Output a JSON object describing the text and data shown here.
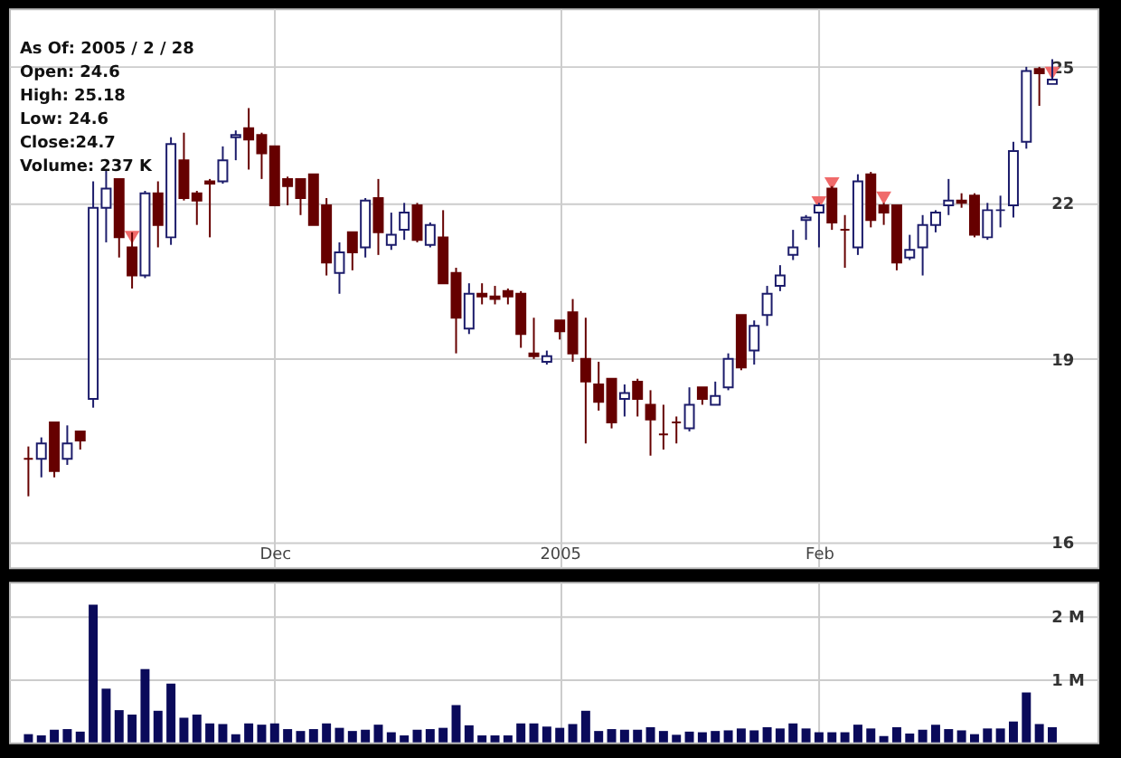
{
  "chart_data": [
    {
      "type": "candlestick",
      "categories": [
        null,
        null,
        null,
        null,
        null,
        null,
        null,
        null,
        null,
        null,
        null,
        null,
        null,
        null,
        null,
        null,
        null,
        null,
        null,
        "Dec",
        null,
        null,
        null,
        null,
        null,
        null,
        null,
        null,
        null,
        null,
        null,
        null,
        null,
        null,
        null,
        null,
        null,
        null,
        null,
        null,
        null,
        "2005",
        null,
        null,
        null,
        null,
        null,
        null,
        null,
        null,
        null,
        null,
        null,
        null,
        null,
        null,
        null,
        null,
        null,
        null,
        null,
        "Feb",
        null,
        null,
        null,
        null,
        null,
        null,
        null,
        null,
        null,
        null,
        null,
        null,
        null,
        null,
        null,
        null,
        null,
        null
      ],
      "ohlc": [
        [
          17.3,
          17.5,
          16.7,
          17.3
        ],
        [
          17.3,
          17.65,
          17.0,
          17.55
        ],
        [
          17.9,
          17.9,
          17.0,
          17.1
        ],
        [
          17.3,
          17.85,
          17.2,
          17.55
        ],
        [
          17.75,
          17.75,
          17.45,
          17.6
        ],
        [
          18.3,
          22.45,
          18.15,
          21.9
        ],
        [
          21.9,
          22.7,
          21.2,
          22.3
        ],
        [
          22.5,
          22.5,
          20.9,
          21.3
        ],
        [
          21.1,
          21.4,
          20.3,
          20.55
        ],
        [
          20.55,
          22.25,
          20.5,
          22.2
        ],
        [
          22.2,
          22.45,
          21.1,
          21.55
        ],
        [
          21.3,
          23.4,
          21.15,
          23.25
        ],
        [
          22.9,
          23.5,
          22.05,
          22.1
        ],
        [
          22.2,
          22.25,
          21.55,
          22.05
        ],
        [
          22.45,
          22.5,
          21.3,
          22.4
        ],
        [
          22.45,
          23.2,
          22.4,
          22.9
        ],
        [
          23.4,
          23.55,
          22.9,
          23.45
        ],
        [
          23.6,
          24.05,
          22.7,
          23.35
        ],
        [
          23.45,
          23.5,
          22.5,
          23.05
        ],
        [
          23.2,
          23.2,
          21.95,
          21.95
        ],
        [
          22.5,
          22.55,
          21.95,
          22.35
        ],
        [
          22.5,
          22.5,
          21.75,
          22.1
        ],
        [
          22.6,
          22.6,
          21.55,
          21.55
        ],
        [
          21.95,
          22.1,
          20.55,
          20.8
        ],
        [
          20.6,
          21.2,
          20.2,
          21.0
        ],
        [
          21.4,
          21.4,
          20.65,
          21.0
        ],
        [
          21.1,
          22.1,
          20.9,
          22.05
        ],
        [
          22.1,
          22.5,
          20.95,
          21.4
        ],
        [
          21.15,
          21.8,
          21.05,
          21.35
        ],
        [
          21.45,
          22.0,
          21.25,
          21.8
        ],
        [
          21.95,
          22.0,
          21.2,
          21.25
        ],
        [
          21.15,
          21.6,
          21.1,
          21.55
        ],
        [
          21.3,
          21.85,
          20.4,
          20.4
        ],
        [
          20.6,
          20.7,
          19.1,
          19.75
        ],
        [
          19.55,
          20.4,
          19.45,
          20.2
        ],
        [
          20.2,
          20.4,
          20.0,
          20.15
        ],
        [
          20.15,
          20.35,
          20.0,
          20.1
        ],
        [
          20.25,
          20.3,
          20.0,
          20.15
        ],
        [
          20.2,
          20.25,
          19.2,
          19.45
        ],
        [
          19.1,
          19.75,
          19.0,
          19.05
        ],
        [
          18.95,
          19.15,
          18.9,
          19.05
        ],
        [
          19.7,
          19.7,
          19.35,
          19.5
        ],
        [
          19.85,
          20.1,
          18.95,
          19.1
        ],
        [
          19.0,
          19.75,
          17.55,
          18.6
        ],
        [
          18.55,
          18.95,
          18.1,
          18.25
        ],
        [
          18.65,
          18.65,
          17.8,
          17.9
        ],
        [
          18.3,
          18.55,
          18.0,
          18.4
        ],
        [
          18.6,
          18.65,
          18.0,
          18.3
        ],
        [
          18.2,
          18.45,
          17.35,
          17.95
        ],
        [
          17.7,
          18.2,
          17.45,
          17.7
        ],
        [
          17.9,
          18.0,
          17.55,
          17.9
        ],
        [
          17.8,
          18.5,
          17.75,
          18.2
        ],
        [
          18.5,
          18.5,
          18.2,
          18.3
        ],
        [
          18.2,
          18.6,
          18.2,
          18.35
        ],
        [
          18.5,
          19.1,
          18.45,
          19.0
        ],
        [
          19.8,
          19.8,
          18.8,
          18.85
        ],
        [
          19.15,
          19.7,
          18.9,
          19.6
        ],
        [
          19.8,
          20.35,
          19.6,
          20.2
        ],
        [
          20.35,
          20.75,
          20.25,
          20.55
        ],
        [
          20.95,
          21.45,
          20.85,
          21.1
        ],
        [
          21.65,
          21.75,
          21.25,
          21.7
        ],
        [
          21.8,
          22.0,
          21.1,
          21.95
        ],
        [
          22.3,
          22.35,
          21.45,
          21.6
        ],
        [
          21.45,
          21.75,
          20.7,
          21.45
        ],
        [
          21.1,
          22.6,
          20.95,
          22.45
        ],
        [
          22.6,
          22.65,
          21.5,
          21.65
        ],
        [
          21.95,
          22.0,
          21.55,
          21.8
        ],
        [
          21.95,
          21.95,
          20.65,
          20.8
        ],
        [
          20.9,
          21.35,
          20.85,
          21.05
        ],
        [
          21.1,
          21.75,
          20.55,
          21.55
        ],
        [
          21.55,
          21.85,
          21.4,
          21.8
        ],
        [
          21.95,
          22.5,
          21.75,
          22.05
        ],
        [
          22.05,
          22.2,
          21.9,
          22.0
        ],
        [
          22.15,
          22.2,
          21.3,
          21.35
        ],
        [
          21.3,
          22.0,
          21.25,
          21.85
        ],
        [
          21.85,
          22.15,
          21.5,
          21.85
        ],
        [
          21.95,
          23.3,
          21.7,
          23.1
        ],
        [
          23.3,
          25.0,
          23.15,
          24.9
        ],
        [
          24.95,
          25.0,
          24.1,
          24.85
        ],
        [
          24.6,
          25.18,
          24.6,
          24.7
        ]
      ],
      "colors": [
        "#660000",
        "#1c1c6b",
        "#660000",
        "#1c1c6b",
        "#660000",
        "#1c1c6b",
        "#1c1c6b",
        "#660000",
        "#660000",
        "#1c1c6b",
        "#660000",
        "#1c1c6b",
        "#660000",
        "#660000",
        "#660000",
        "#1c1c6b",
        "#1c1c6b",
        "#660000",
        "#660000",
        "#660000",
        "#660000",
        "#660000",
        "#660000",
        "#660000",
        "#1c1c6b",
        "#660000",
        "#1c1c6b",
        "#660000",
        "#1c1c6b",
        "#1c1c6b",
        "#660000",
        "#1c1c6b",
        "#660000",
        "#660000",
        "#1c1c6b",
        "#660000",
        "#660000",
        "#660000",
        "#660000",
        "#660000",
        "#1c1c6b",
        "#660000",
        "#660000",
        "#660000",
        "#660000",
        "#660000",
        "#1c1c6b",
        "#660000",
        "#660000",
        "#660000",
        "#660000",
        "#1c1c6b",
        "#660000",
        "#1c1c6b",
        "#1c1c6b",
        "#660000",
        "#1c1c6b",
        "#1c1c6b",
        "#1c1c6b",
        "#1c1c6b",
        "#1c1c6b",
        "#1c1c6b",
        "#660000",
        "#660000",
        "#1c1c6b",
        "#660000",
        "#660000",
        "#660000",
        "#1c1c6b",
        "#1c1c6b",
        "#1c1c6b",
        "#1c1c6b",
        "#660000",
        "#660000",
        "#1c1c6b",
        "#1c1c6b",
        "#1c1c6b",
        "#1c1c6b",
        "#660000",
        "#1c1c6b"
      ],
      "series": [
        {
          "type": "scatter",
          "color": "#f06a6a",
          "marker": "triangle",
          "values": [
            null,
            null,
            null,
            null,
            null,
            null,
            null,
            null,
            21.3,
            null,
            null,
            null,
            null,
            null,
            null,
            null,
            null,
            null,
            null,
            null,
            null,
            null,
            null,
            null,
            null,
            null,
            null,
            null,
            null,
            null,
            null,
            null,
            null,
            null,
            null,
            null,
            null,
            null,
            null,
            null,
            null,
            null,
            null,
            null,
            null,
            null,
            null,
            null,
            null,
            null,
            null,
            null,
            null,
            null,
            null,
            null,
            null,
            null,
            null,
            null,
            null,
            22.0,
            22.4,
            null,
            null,
            null,
            22.1,
            null,
            null,
            null,
            null,
            null,
            null,
            null,
            null,
            null,
            null,
            null,
            null,
            24.85
          ]
        }
      ],
      "ylim": [
        15.62,
        26.41
      ],
      "yticks": [
        16,
        19,
        22,
        25
      ],
      "log": true,
      "grid": true,
      "annotations": [
        "As Of: 2005 / 2 / 28",
        "Open: 24.6",
        "High: 25.18",
        "Low: 24.6",
        "Close:24.7",
        "Volume: 237 K"
      ]
    },
    {
      "type": "bar",
      "categories": [
        null,
        null,
        null,
        null,
        null,
        null,
        null,
        null,
        null,
        null,
        null,
        null,
        null,
        null,
        null,
        null,
        null,
        null,
        null,
        null,
        null,
        null,
        null,
        null,
        null,
        null,
        null,
        null,
        null,
        null,
        null,
        null,
        null,
        null,
        null,
        null,
        null,
        null,
        null,
        null,
        null,
        null,
        null,
        null,
        null,
        null,
        null,
        null,
        null,
        null,
        null,
        null,
        null,
        null,
        null,
        null,
        null,
        null,
        null,
        null,
        null,
        null,
        null,
        null,
        null,
        null,
        null,
        null,
        null,
        null,
        null,
        null,
        null,
        null,
        null,
        null,
        null,
        null,
        null,
        null
      ],
      "values": [
        0.13,
        0.11,
        0.2,
        0.21,
        0.17,
        2.18,
        0.85,
        0.51,
        0.44,
        1.16,
        0.5,
        0.93,
        0.39,
        0.44,
        0.3,
        0.29,
        0.13,
        0.3,
        0.28,
        0.3,
        0.21,
        0.18,
        0.21,
        0.3,
        0.23,
        0.18,
        0.2,
        0.28,
        0.16,
        0.11,
        0.2,
        0.21,
        0.23,
        0.59,
        0.27,
        0.11,
        0.11,
        0.11,
        0.3,
        0.3,
        0.25,
        0.23,
        0.29,
        0.5,
        0.18,
        0.21,
        0.2,
        0.2,
        0.24,
        0.18,
        0.12,
        0.17,
        0.16,
        0.18,
        0.19,
        0.22,
        0.19,
        0.24,
        0.22,
        0.3,
        0.22,
        0.16,
        0.16,
        0.16,
        0.28,
        0.22,
        0.1,
        0.24,
        0.14,
        0.2,
        0.28,
        0.21,
        0.19,
        0.13,
        0.22,
        0.22,
        0.33,
        0.79,
        0.29,
        0.24
      ],
      "color": "#0a0a5a",
      "ylim": [
        0,
        2.54
      ],
      "yticks": [
        {
          "value": 1,
          "label": "1 M"
        },
        {
          "value": 2,
          "label": "2 M"
        }
      ],
      "grid": true,
      "tick_labels": "y"
    }
  ]
}
